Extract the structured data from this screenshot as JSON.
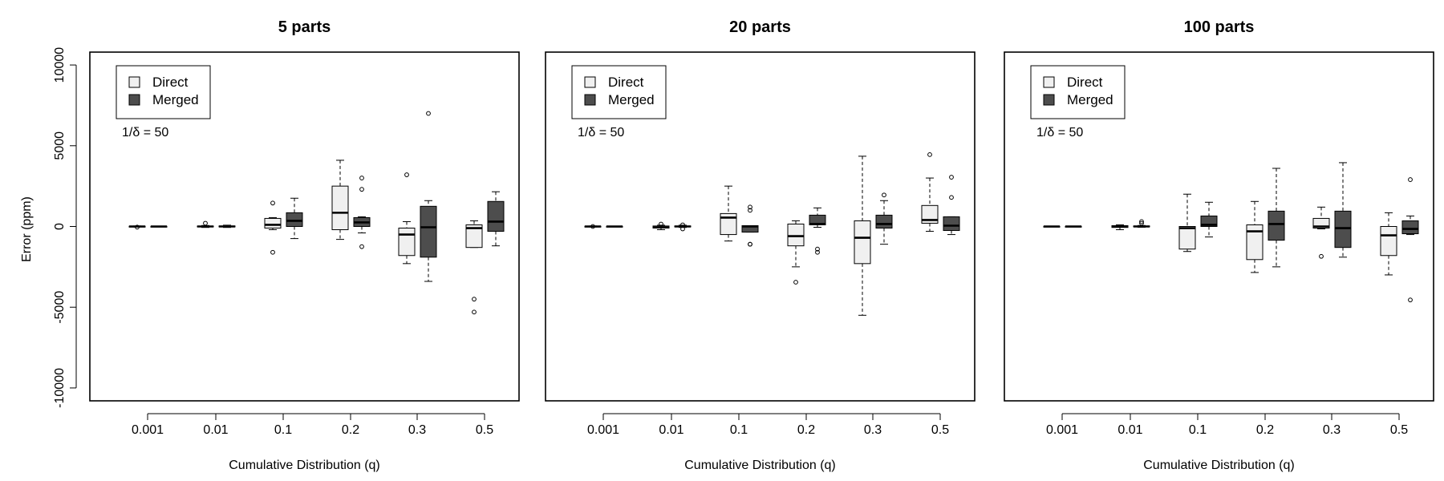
{
  "chart_data": {
    "type": "boxplot",
    "ylabel": "Error (ppm)",
    "xlabel": "Cumulative Distribution (q)",
    "ylim": [
      -10500,
      10500
    ],
    "yticks": [
      -10000,
      -5000,
      0,
      5000,
      10000
    ],
    "yticklabels": [
      "-10000",
      "-5000",
      "0",
      "5000",
      "10000"
    ],
    "categories": [
      "0.001",
      "0.01",
      "0.1",
      "0.2",
      "0.3",
      "0.5"
    ],
    "legend": {
      "placement": "top-left",
      "entries": [
        {
          "label": "Direct",
          "color": "#f0f0f0"
        },
        {
          "label": "Merged",
          "color": "#4d4d4d"
        }
      ],
      "note": "1/δ = 50"
    },
    "panels": [
      {
        "title": "5  parts",
        "series": [
          {
            "name": "Direct",
            "boxes": [
              {
                "q": "0.001",
                "min": -30,
                "q1": -15,
                "median": 0,
                "q3": 15,
                "max": 30,
                "outliers": [
                  -40
                ]
              },
              {
                "q": "0.01",
                "min": -60,
                "q1": -25,
                "median": 0,
                "q3": 25,
                "max": 60,
                "outliers": [
                  200
                ]
              },
              {
                "q": "0.1",
                "min": -200,
                "q1": -100,
                "median": 100,
                "q3": 500,
                "max": 550,
                "outliers": [
                  1450,
                  -1600
                ]
              },
              {
                "q": "0.2",
                "min": -800,
                "q1": -200,
                "median": 850,
                "q3": 2500,
                "max": 4100,
                "outliers": []
              },
              {
                "q": "0.3",
                "min": -2300,
                "q1": -1800,
                "median": -500,
                "q3": -100,
                "max": 300,
                "outliers": [
                  3200
                ]
              },
              {
                "q": "0.5",
                "min": -1300,
                "q1": -1300,
                "median": -100,
                "q3": 100,
                "max": 350,
                "outliers": [
                  -4500,
                  -5300
                ]
              }
            ]
          },
          {
            "name": "Merged",
            "boxes": [
              {
                "q": "0.001",
                "min": -20,
                "q1": -10,
                "median": 0,
                "q3": 10,
                "max": 20,
                "outliers": []
              },
              {
                "q": "0.01",
                "min": -60,
                "q1": -25,
                "median": 0,
                "q3": 30,
                "max": 80,
                "outliers": []
              },
              {
                "q": "0.1",
                "min": -750,
                "q1": 0,
                "median": 350,
                "q3": 850,
                "max": 1750,
                "outliers": []
              },
              {
                "q": "0.2",
                "min": -400,
                "q1": 0,
                "median": 250,
                "q3": 550,
                "max": 600,
                "outliers": [
                  3000,
                  2300,
                  -1250
                ]
              },
              {
                "q": "0.3",
                "min": -3400,
                "q1": -1900,
                "median": -50,
                "q3": 1250,
                "max": 1600,
                "outliers": [
                  7000
                ]
              },
              {
                "q": "0.5",
                "min": -1200,
                "q1": -300,
                "median": 300,
                "q3": 1550,
                "max": 2150,
                "outliers": []
              }
            ]
          }
        ]
      },
      {
        "title": "20  parts",
        "series": [
          {
            "name": "Direct",
            "boxes": [
              {
                "q": "0.001",
                "min": -30,
                "q1": -15,
                "median": 0,
                "q3": 15,
                "max": 30,
                "outliers": [
                  0
                ]
              },
              {
                "q": "0.01",
                "min": -200,
                "q1": -100,
                "median": -50,
                "q3": 30,
                "max": 80,
                "outliers": [
                  150
                ]
              },
              {
                "q": "0.1",
                "min": -900,
                "q1": -500,
                "median": 550,
                "q3": 800,
                "max": 2500,
                "outliers": []
              },
              {
                "q": "0.2",
                "min": -2500,
                "q1": -1200,
                "median": -600,
                "q3": 150,
                "max": 350,
                "outliers": [
                  -3450
                ]
              },
              {
                "q": "0.3",
                "min": -5500,
                "q1": -2300,
                "median": -700,
                "q3": 350,
                "max": 4350,
                "outliers": []
              },
              {
                "q": "0.5",
                "min": -300,
                "q1": 200,
                "median": 400,
                "q3": 1300,
                "max": 3000,
                "outliers": [
                  4450
                ]
              }
            ]
          },
          {
            "name": "Merged",
            "boxes": [
              {
                "q": "0.001",
                "min": -20,
                "q1": -10,
                "median": 0,
                "q3": 10,
                "max": 20,
                "outliers": []
              },
              {
                "q": "0.01",
                "min": -60,
                "q1": -25,
                "median": 0,
                "q3": 30,
                "max": 80,
                "outliers": [
                  100,
                  -150
                ]
              },
              {
                "q": "0.1",
                "min": -350,
                "q1": -350,
                "median": 0,
                "q3": 50,
                "max": 50,
                "outliers": [
                  1200,
                  1000,
                  -1100,
                  -1100
                ]
              },
              {
                "q": "0.2",
                "min": -50,
                "q1": 100,
                "median": 150,
                "q3": 700,
                "max": 1150,
                "outliers": [
                  -1400,
                  -1600
                ]
              },
              {
                "q": "0.3",
                "min": -1100,
                "q1": -100,
                "median": 150,
                "q3": 700,
                "max": 1600,
                "outliers": [
                  1950
                ]
              },
              {
                "q": "0.5",
                "min": -500,
                "q1": -250,
                "median": 50,
                "q3": 600,
                "max": 600,
                "outliers": [
                  3050,
                  1800
                ]
              }
            ]
          }
        ]
      },
      {
        "title": "100  parts",
        "series": [
          {
            "name": "Direct",
            "boxes": [
              {
                "q": "0.001",
                "min": -20,
                "q1": -10,
                "median": 0,
                "q3": 10,
                "max": 20,
                "outliers": []
              },
              {
                "q": "0.01",
                "min": -200,
                "q1": -60,
                "median": 0,
                "q3": 50,
                "max": 100,
                "outliers": []
              },
              {
                "q": "0.1",
                "min": -1550,
                "q1": -1400,
                "median": -100,
                "q3": 0,
                "max": 2000,
                "outliers": []
              },
              {
                "q": "0.2",
                "min": -2850,
                "q1": -2050,
                "median": -300,
                "q3": 100,
                "max": 1550,
                "outliers": []
              },
              {
                "q": "0.3",
                "min": -150,
                "q1": -100,
                "median": 0,
                "q3": 500,
                "max": 1200,
                "outliers": [
                  -1850
                ]
              },
              {
                "q": "0.5",
                "min": -3000,
                "q1": -1800,
                "median": -550,
                "q3": 0,
                "max": 850,
                "outliers": []
              }
            ]
          },
          {
            "name": "Merged",
            "boxes": [
              {
                "q": "0.001",
                "min": -20,
                "q1": -10,
                "median": 0,
                "q3": 10,
                "max": 20,
                "outliers": []
              },
              {
                "q": "0.01",
                "min": -50,
                "q1": -20,
                "median": 0,
                "q3": 30,
                "max": 60,
                "outliers": [
                  300,
                  200
                ]
              },
              {
                "q": "0.1",
                "min": -650,
                "q1": 0,
                "median": 100,
                "q3": 650,
                "max": 1500,
                "outliers": []
              },
              {
                "q": "0.2",
                "min": -2500,
                "q1": -850,
                "median": 150,
                "q3": 950,
                "max": 3600,
                "outliers": []
              },
              {
                "q": "0.3",
                "min": -1900,
                "q1": -1300,
                "median": -100,
                "q3": 950,
                "max": 3950,
                "outliers": []
              },
              {
                "q": "0.5",
                "min": -500,
                "q1": -450,
                "median": -150,
                "q3": 350,
                "max": 650,
                "outliers": [
                  2900,
                  -4550
                ]
              }
            ]
          }
        ]
      }
    ]
  }
}
